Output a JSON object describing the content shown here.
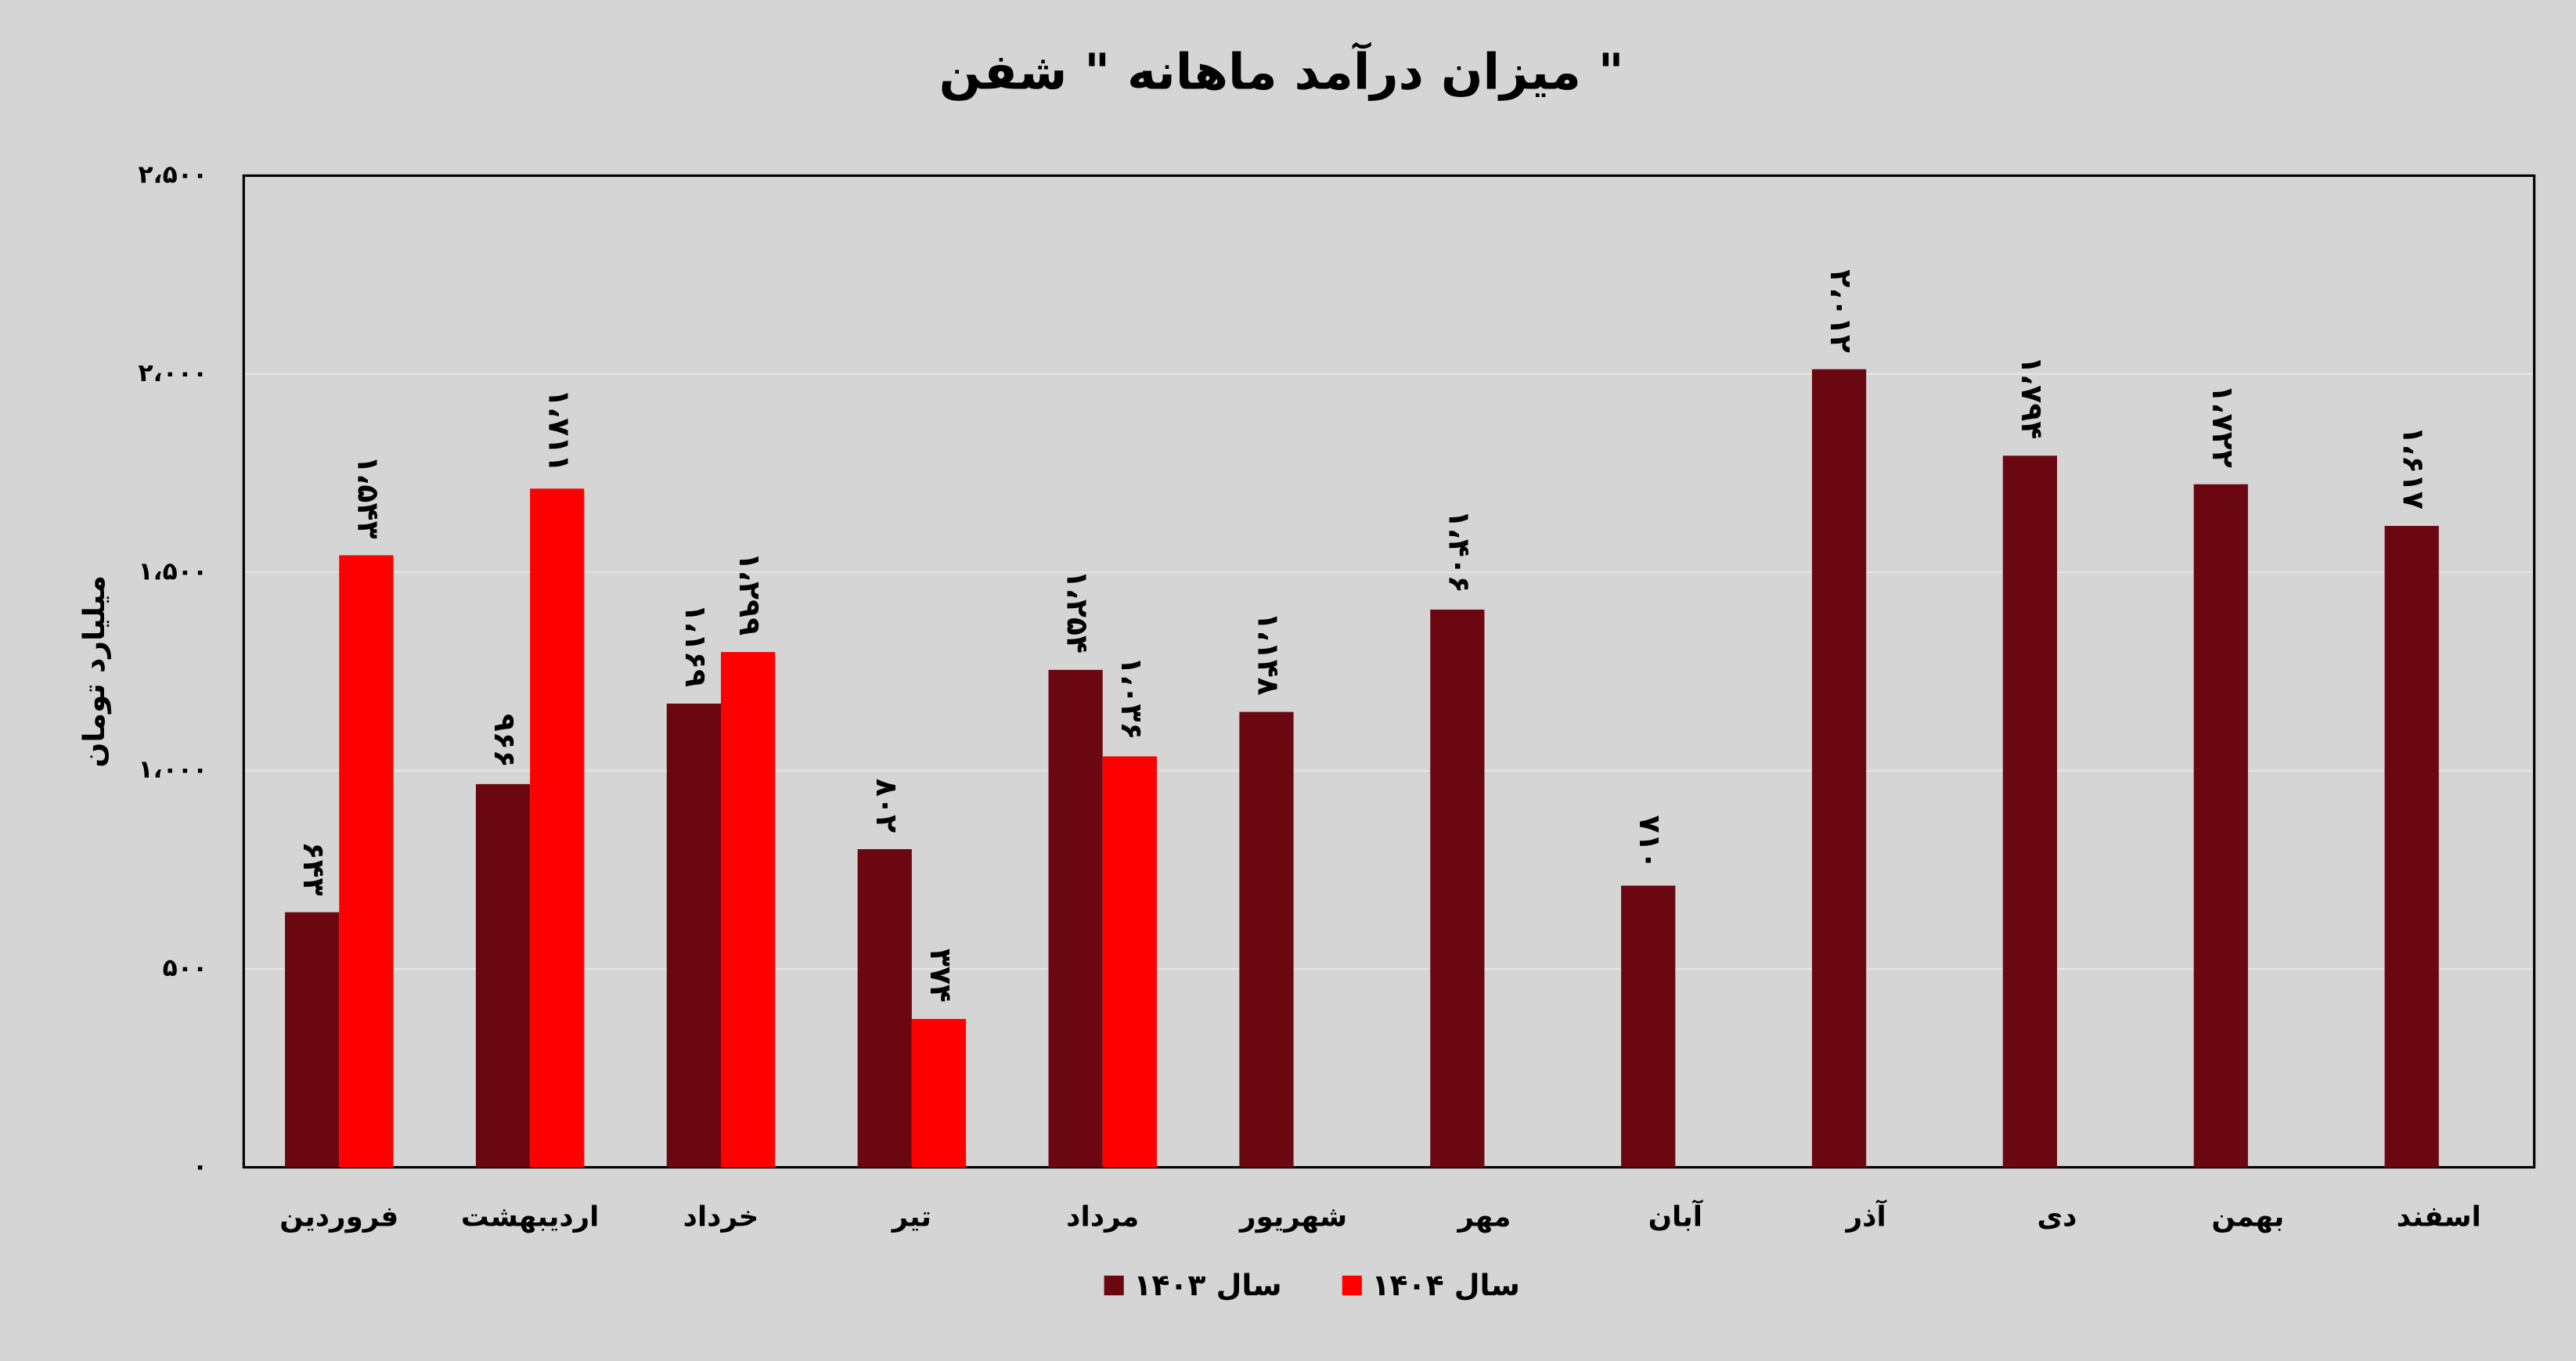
{
  "chart_data": {
    "type": "bar",
    "title": "میزان درآمد ماهانه \" شفن \"",
    "y_label": "میلیارد تومان",
    "categories": [
      "فروردین",
      "اردیبهشت",
      "خرداد",
      "تیر",
      "مرداد",
      "شهریور",
      "مهر",
      "آبان",
      "آذر",
      "دی",
      "بهمن",
      "اسفند"
    ],
    "series": [
      {
        "name": "سال ۱۴۰۳",
        "color": "#6b0710",
        "values": [
          643,
          966,
          1169,
          802,
          1254,
          1148,
          1406,
          710,
          2012,
          1794,
          1722,
          1617
        ],
        "value_labels": [
          "۶۴۳",
          "۹۶۶",
          "۱،۱۶۹",
          "۸۰۲",
          "۱،۲۵۴",
          "۱،۱۴۸",
          "۱،۴۰۶",
          "۷۱۰",
          "۲،۰۱۲",
          "۱،۷۹۴",
          "۱،۷۲۲",
          "۱،۶۱۷"
        ]
      },
      {
        "name": "سال ۱۴۰۴",
        "color": "#ff0000",
        "values": [
          1543,
          1711,
          1299,
          374,
          1036,
          null,
          null,
          null,
          null,
          null,
          null,
          null
        ],
        "value_labels": [
          "۱،۵۴۳",
          "۱،۷۱۱",
          "۱،۲۹۹",
          "۳۷۴",
          "۱،۰۳۶",
          null,
          null,
          null,
          null,
          null,
          null,
          null
        ]
      }
    ],
    "ylim": [
      0,
      2500
    ],
    "yticks": [
      {
        "value": 0,
        "label": "۰"
      },
      {
        "value": 500,
        "label": "۵۰۰"
      },
      {
        "value": 1000,
        "label": "۱،۰۰۰"
      },
      {
        "value": 1500,
        "label": "۱،۵۰۰"
      },
      {
        "value": 2000,
        "label": "۲،۰۰۰"
      },
      {
        "value": 2500,
        "label": "۲،۵۰۰"
      }
    ],
    "grid": true
  }
}
